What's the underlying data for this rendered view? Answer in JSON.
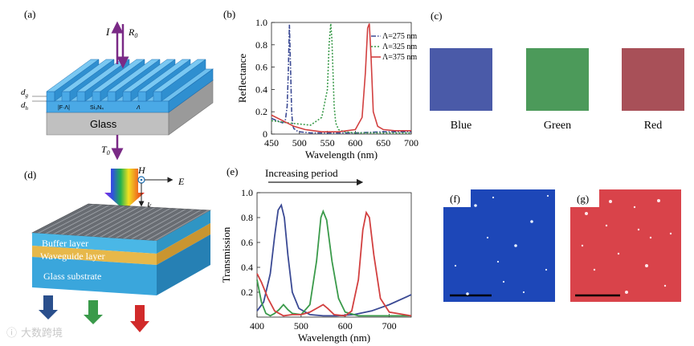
{
  "colors": {
    "grating_top": "#4aa9e6",
    "grating_side": "#2f8fd0",
    "grating_dark": "#1f6fb0",
    "glass_top": "#d7d7d7",
    "glass_side": "#9a9a9a",
    "swatch_blue": "#4a5aa8",
    "swatch_green": "#4c9a5a",
    "swatch_red": "#a85058",
    "arrow_purple": "#7a2a86",
    "curve_blue": "#3b4a94",
    "curve_green": "#3a9a4a",
    "curve_red": "#d24040"
  },
  "panel_a": {
    "label": "(a)",
    "incident_label": "I",
    "reflected_label": "R",
    "reflected_sub": "0",
    "transmitted_label": "T",
    "transmitted_sub": "0",
    "dim_g": "d",
    "dim_g_sub": "g",
    "dim_h": "d",
    "dim_h_sub": "h",
    "f_lambda": "|F·Λ|",
    "material": "Si₃N₄",
    "lambda_mark": "Λ",
    "substrate": "Glass"
  },
  "panel_b": {
    "label": "(b)"
  },
  "panel_c": {
    "label": "(c)",
    "swatches": [
      {
        "name": "Blue",
        "color": "#4a5aa8"
      },
      {
        "name": "Green",
        "color": "#4c9a5a"
      },
      {
        "name": "Red",
        "color": "#a85058"
      }
    ]
  },
  "panel_d": {
    "label": "(d)",
    "h_label": "H",
    "e_label": "E",
    "k_label": "k",
    "buffer": "Buffer layer",
    "waveguide": "Waveguide layer",
    "substrate": "Glass substrate"
  },
  "panel_e": {
    "label": "(e)",
    "increasing": "Increasing period"
  },
  "panel_f": {
    "label": "(f)"
  },
  "panel_g": {
    "label": "(g)"
  },
  "watermark": "大数跨境",
  "chart_data": [
    {
      "id": "reflectance",
      "type": "line",
      "title": "",
      "xlabel": "Wavelength (nm)",
      "ylabel": "Reflectance",
      "xlim": [
        450,
        700
      ],
      "ylim": [
        0,
        1.0
      ],
      "xticks": [
        450,
        500,
        550,
        600,
        650,
        700
      ],
      "yticks": [
        0,
        0.2,
        0.4,
        0.6,
        0.8,
        1.0
      ],
      "legend_position": "top-right",
      "series": [
        {
          "name": "Λ=275 nm",
          "color": "#3b4a94",
          "dash": "dashdot",
          "x": [
            450,
            460,
            470,
            475,
            478,
            480,
            482,
            484,
            486,
            488,
            490,
            495,
            500,
            520,
            550,
            600,
            650,
            700
          ],
          "y": [
            0.14,
            0.12,
            0.1,
            0.13,
            0.25,
            0.55,
            0.98,
            0.6,
            0.2,
            0.08,
            0.05,
            0.03,
            0.02,
            0.01,
            0.01,
            0.01,
            0.02,
            0.02
          ]
        },
        {
          "name": "Λ=325 nm",
          "color": "#3a9a4a",
          "dash": "dot",
          "x": [
            450,
            480,
            500,
            520,
            540,
            550,
            553,
            556,
            558,
            560,
            562,
            565,
            570,
            580,
            600,
            650,
            700
          ],
          "y": [
            0.12,
            0.1,
            0.09,
            0.08,
            0.15,
            0.4,
            0.8,
            0.99,
            0.85,
            0.55,
            0.25,
            0.1,
            0.04,
            0.02,
            0.01,
            0.01,
            0.01
          ]
        },
        {
          "name": "Λ=375 nm",
          "color": "#d24040",
          "dash": "solid",
          "x": [
            450,
            470,
            490,
            510,
            540,
            570,
            600,
            612,
            618,
            622,
            625,
            628,
            632,
            640,
            650,
            670,
            700
          ],
          "y": [
            0.17,
            0.12,
            0.07,
            0.04,
            0.02,
            0.02,
            0.04,
            0.15,
            0.55,
            0.95,
            0.99,
            0.7,
            0.2,
            0.07,
            0.04,
            0.03,
            0.03
          ]
        }
      ]
    },
    {
      "id": "transmission",
      "type": "line",
      "title": "",
      "xlabel": "Wavelength (nm)",
      "ylabel": "Transmission",
      "xlim": [
        400,
        750
      ],
      "ylim": [
        0,
        1.0
      ],
      "xticks": [
        400,
        500,
        600,
        700
      ],
      "yticks": [
        0.2,
        0.4,
        0.6,
        0.8,
        1.0
      ],
      "series": [
        {
          "name": "blue",
          "color": "#3b4a94",
          "x": [
            400,
            415,
            430,
            440,
            448,
            455,
            462,
            470,
            480,
            495,
            520,
            550,
            580,
            620,
            660,
            700,
            750
          ],
          "y": [
            0.05,
            0.12,
            0.35,
            0.65,
            0.86,
            0.9,
            0.8,
            0.5,
            0.2,
            0.07,
            0.02,
            0.01,
            0.01,
            0.02,
            0.05,
            0.1,
            0.18
          ]
        },
        {
          "name": "green",
          "color": "#3a9a4a",
          "x": [
            400,
            410,
            420,
            430,
            440,
            450,
            460,
            470,
            480,
            500,
            520,
            535,
            545,
            550,
            558,
            570,
            585,
            600,
            630,
            680,
            750
          ],
          "y": [
            0.3,
            0.12,
            0.03,
            0.01,
            0.03,
            0.06,
            0.1,
            0.06,
            0.03,
            0.02,
            0.1,
            0.45,
            0.8,
            0.85,
            0.78,
            0.45,
            0.15,
            0.04,
            0.01,
            0.01,
            0.01
          ]
        },
        {
          "name": "red",
          "color": "#d24040",
          "x": [
            400,
            410,
            425,
            440,
            460,
            480,
            500,
            520,
            540,
            550,
            560,
            575,
            600,
            615,
            630,
            640,
            648,
            655,
            665,
            680,
            700,
            750
          ],
          "y": [
            0.35,
            0.28,
            0.15,
            0.05,
            0.01,
            0.02,
            0.02,
            0.04,
            0.08,
            0.1,
            0.07,
            0.02,
            0.01,
            0.05,
            0.3,
            0.7,
            0.84,
            0.8,
            0.5,
            0.15,
            0.04,
            0.01
          ]
        }
      ]
    }
  ]
}
